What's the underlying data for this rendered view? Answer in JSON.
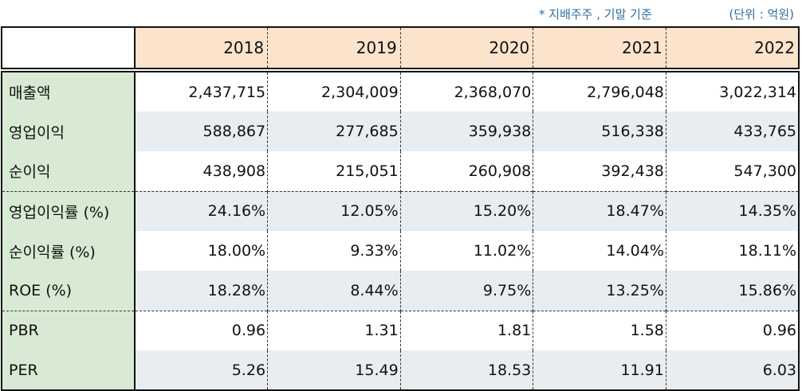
{
  "notes": {
    "basis": "* 지배주주 , 기말 기준",
    "unit": "(단위 : 억원)"
  },
  "years": [
    "2018",
    "2019",
    "2020",
    "2021",
    "2022"
  ],
  "rows": [
    {
      "label": "매출액",
      "values": [
        "2,437,715",
        "2,304,009",
        "2,368,070",
        "2,796,048",
        "3,022,314"
      ]
    },
    {
      "label": "영업이익",
      "values": [
        "588,867",
        "277,685",
        "359,938",
        "516,338",
        "433,765"
      ]
    },
    {
      "label": "순이익",
      "values": [
        "438,908",
        "215,051",
        "260,908",
        "392,438",
        "547,300"
      ]
    },
    {
      "label": "영업이익률 (%)",
      "values": [
        "24.16%",
        "12.05%",
        "15.20%",
        "18.47%",
        "14.35%"
      ]
    },
    {
      "label": "순이익률 (%)",
      "values": [
        "18.00%",
        "9.33%",
        "11.02%",
        "14.04%",
        "18.11%"
      ]
    },
    {
      "label": "ROE (%)",
      "values": [
        "18.28%",
        "8.44%",
        "9.75%",
        "13.25%",
        "15.86%"
      ]
    },
    {
      "label": "PBR",
      "values": [
        "0.96",
        "1.31",
        "1.81",
        "1.58",
        "0.96"
      ]
    },
    {
      "label": "PER",
      "values": [
        "5.26",
        "15.49",
        "18.53",
        "11.91",
        "6.03"
      ]
    }
  ]
}
